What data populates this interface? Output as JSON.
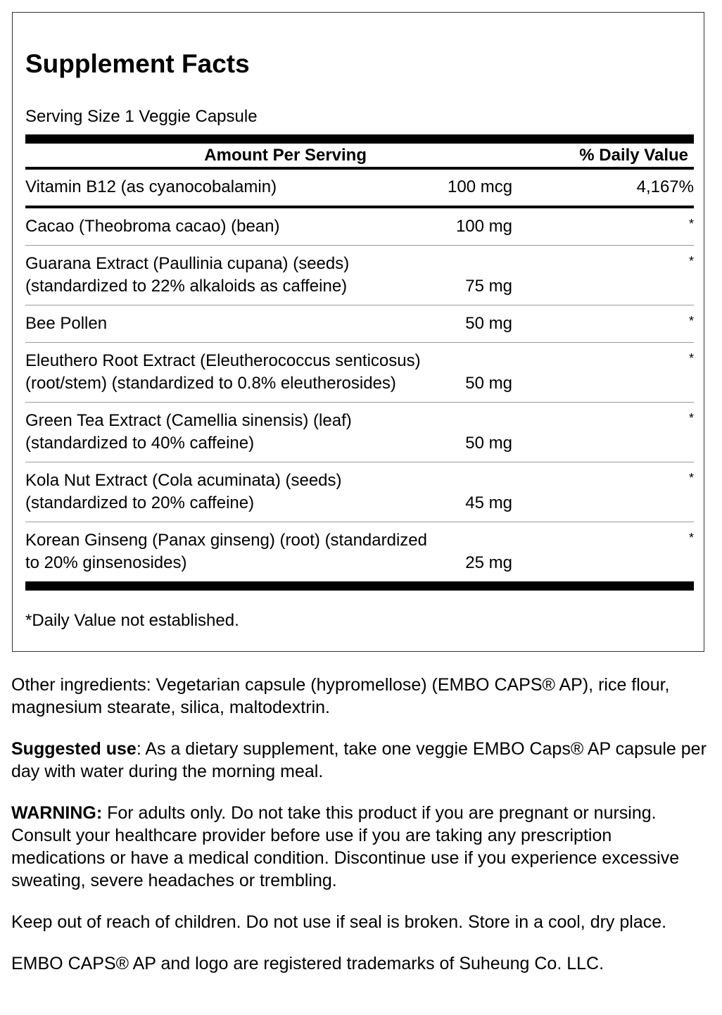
{
  "title": "Supplement Facts",
  "serving_size": "Serving Size 1 Veggie Capsule",
  "header": {
    "amount": "Amount Per Serving",
    "dv": "% Daily Value"
  },
  "rows": [
    {
      "name": "Vitamin B12 (as cyanocobalamin)",
      "amount": "100 mcg",
      "dv": "4,167%"
    },
    {
      "name": "Cacao (Theobroma cacao) (bean)",
      "amount": "100 mg",
      "dv": "*"
    },
    {
      "name": "Guarana Extract (Paullinia cupana) (seeds)\n(standardized to 22% alkaloids as caffeine)",
      "amount": "75 mg",
      "dv": "*"
    },
    {
      "name": "Bee Pollen",
      "amount": "50 mg",
      "dv": "*"
    },
    {
      "name": "Eleuthero Root Extract (Eleutherococcus senticosus)\n(root/stem) (standardized to 0.8% eleutherosides)",
      "amount": "50 mg",
      "dv": "*"
    },
    {
      "name": "Green Tea Extract (Camellia sinensis) (leaf)\n(standardized to 40% caffeine)",
      "amount": "50 mg",
      "dv": "*"
    },
    {
      "name": "Kola Nut Extract (Cola acuminata) (seeds)\n(standardized to 20% caffeine)",
      "amount": "45 mg",
      "dv": "*"
    },
    {
      "name": "Korean Ginseng (Panax ginseng) (root) (standardized\nto 20% ginsenosides)",
      "amount": "25 mg",
      "dv": "*"
    }
  ],
  "footnote": "*Daily Value not established.",
  "other_ingredients": "Other ingredients: Vegetarian capsule (hypromellose) (EMBO CAPS® AP), rice flour, magnesium stearate, silica, maltodextrin.",
  "suggested_use": {
    "label": "Suggested use",
    "text": ": As a dietary supplement, take one veggie EMBO Caps® AP capsule per day with water during the morning meal."
  },
  "warning": {
    "label": "WARNING:",
    "text": " For adults only. Do not take this product if you are pregnant or nursing. Consult your healthcare provider before use if you are taking any prescription medications or have a medical condition. Discontinue use if you experience excessive sweating, severe headaches or trembling."
  },
  "storage": "Keep out of reach of children. Do not use if seal is broken. Store in a cool, dry place.",
  "trademark": "EMBO CAPS® AP and logo are registered trademarks of Suheung Co. LLC."
}
